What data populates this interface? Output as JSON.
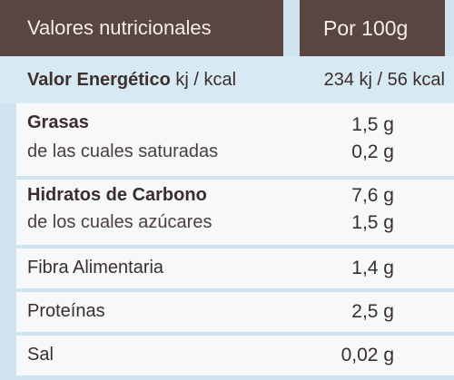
{
  "header": {
    "title": "Valores nutricionales",
    "per": "Por 100g"
  },
  "energy": {
    "label": "Valor Energético",
    "unit": " kj / kcal",
    "value": "234 kj / 56 kcal"
  },
  "rows": [
    {
      "label": "Grasas",
      "value": "1,5 g",
      "sub_label": "de las cuales saturadas",
      "sub_value": "0,2 g"
    },
    {
      "label": "Hidratos de Carbono",
      "value": "7,6 g",
      "sub_label": "de los cuales azúcares",
      "sub_value": "1,5 g"
    },
    {
      "label": "Fibra Alimentaria",
      "value": "1,4 g"
    },
    {
      "label": "Proteínas",
      "value": "2,5 g"
    },
    {
      "label": "Sal",
      "value": "0,02 g"
    }
  ],
  "colors": {
    "header_bg": "#5a4641",
    "background": "#cfe4ef",
    "row_bg": "#f7f8fa",
    "text": "#3a2e2c"
  }
}
